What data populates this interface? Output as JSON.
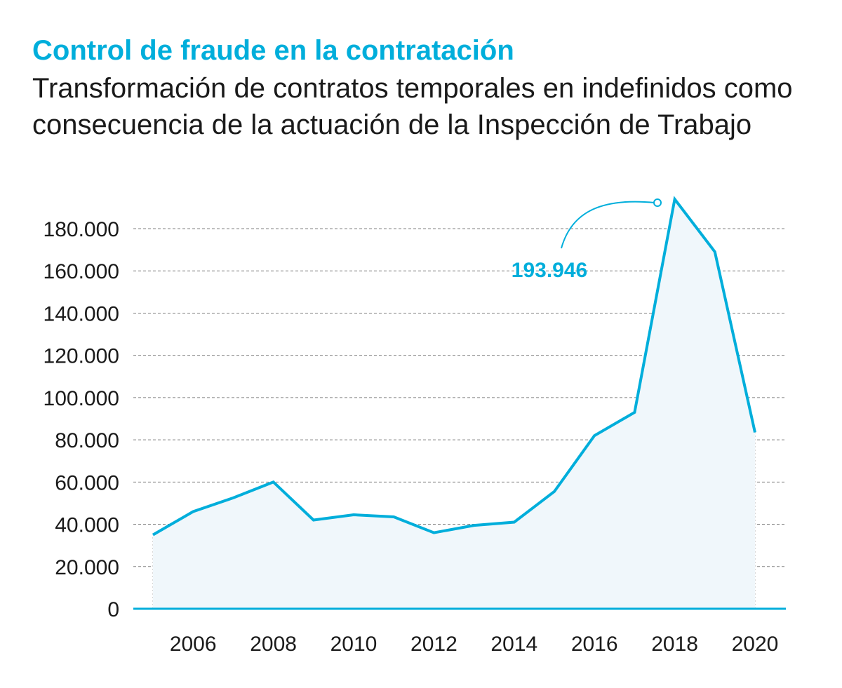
{
  "title": "Control de fraude en la contratación",
  "subtitle": "Transformación de contratos temporales en indefinidos como consecuencia de la actuación de la Inspección de Trabajo",
  "colors": {
    "accent": "#00aedb",
    "area_fill": "#f0f7fb",
    "grid": "#808080",
    "text": "#1a1a1a"
  },
  "chart_data": {
    "type": "area",
    "x": [
      2005,
      2006,
      2007,
      2008,
      2009,
      2010,
      2011,
      2012,
      2013,
      2014,
      2015,
      2016,
      2017,
      2018,
      2019,
      2020
    ],
    "values": [
      35000,
      46000,
      52500,
      60000,
      42000,
      44500,
      43500,
      36000,
      39500,
      41000,
      55500,
      82000,
      93000,
      193946,
      169000,
      83500
    ],
    "x_tick_labels": [
      "2006",
      "2008",
      "2010",
      "2012",
      "2014",
      "2016",
      "2018",
      "2020"
    ],
    "y_tick_labels": [
      "0",
      "20.000",
      "40.000",
      "60.000",
      "80.000",
      "100.000",
      "120.000",
      "140.000",
      "160.000",
      "180.000"
    ],
    "ylim": [
      0,
      195000
    ],
    "grid": true,
    "annotation": {
      "text": "193.946",
      "x": 2018,
      "y": 193946
    }
  }
}
